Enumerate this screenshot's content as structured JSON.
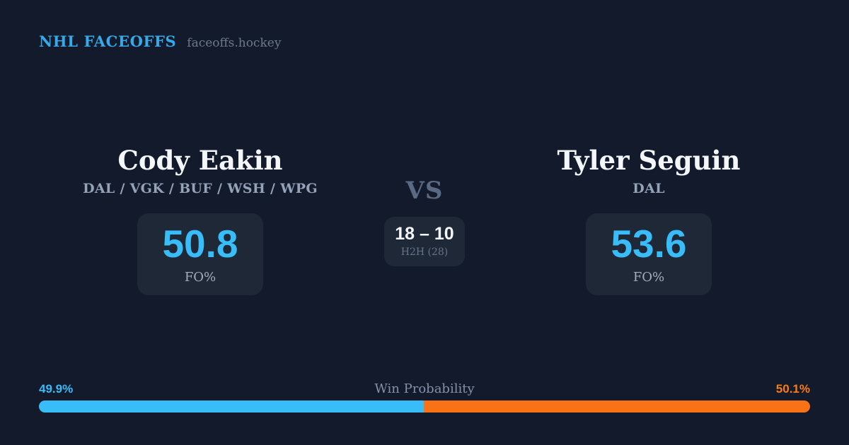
{
  "header": {
    "brand": "NHL FACEOFFS",
    "site": "faceoffs.hockey"
  },
  "left_player": {
    "name": "Cody Eakin",
    "teams": "DAL / VGK / BUF / WSH / WPG",
    "fo_pct": "50.8",
    "fo_label": "FO%"
  },
  "right_player": {
    "name": "Tyler Seguin",
    "teams": "DAL",
    "fo_pct": "53.6",
    "fo_label": "FO%"
  },
  "matchup": {
    "vs": "VS",
    "h2h_score": "18 – 10",
    "h2h_label": "H2H (28)"
  },
  "win_probability": {
    "title": "Win Probability",
    "left_pct_label": "49.9%",
    "right_pct_label": "50.1%",
    "left_value": 49.9,
    "right_value": 50.1
  },
  "colors": {
    "background": "#121a2b",
    "card": "#1e2836",
    "accent_blue": "#38bdf8",
    "accent_orange": "#f97316",
    "brand_blue": "#38a9e8",
    "text_primary": "#f4f7fa",
    "text_muted": "#94a3b8",
    "vs_gray": "#5a6a83"
  },
  "chart_data": {
    "type": "bar",
    "title": "Win Probability",
    "orientation": "horizontal-stacked",
    "categories": [
      "Cody Eakin",
      "Tyler Seguin"
    ],
    "values": [
      49.9,
      50.1
    ],
    "unit": "%",
    "xlim": [
      0,
      100
    ],
    "legend": "off",
    "grid": "off",
    "segment_colors": [
      "#38bdf8",
      "#f97316"
    ],
    "supporting_stats": {
      "faceoff_pct": {
        "Cody Eakin": 50.8,
        "Tyler Seguin": 53.6
      },
      "head_to_head": {
        "Cody Eakin_wins": 18,
        "Tyler Seguin_wins": 10,
        "total_faceoffs": 28
      }
    }
  }
}
